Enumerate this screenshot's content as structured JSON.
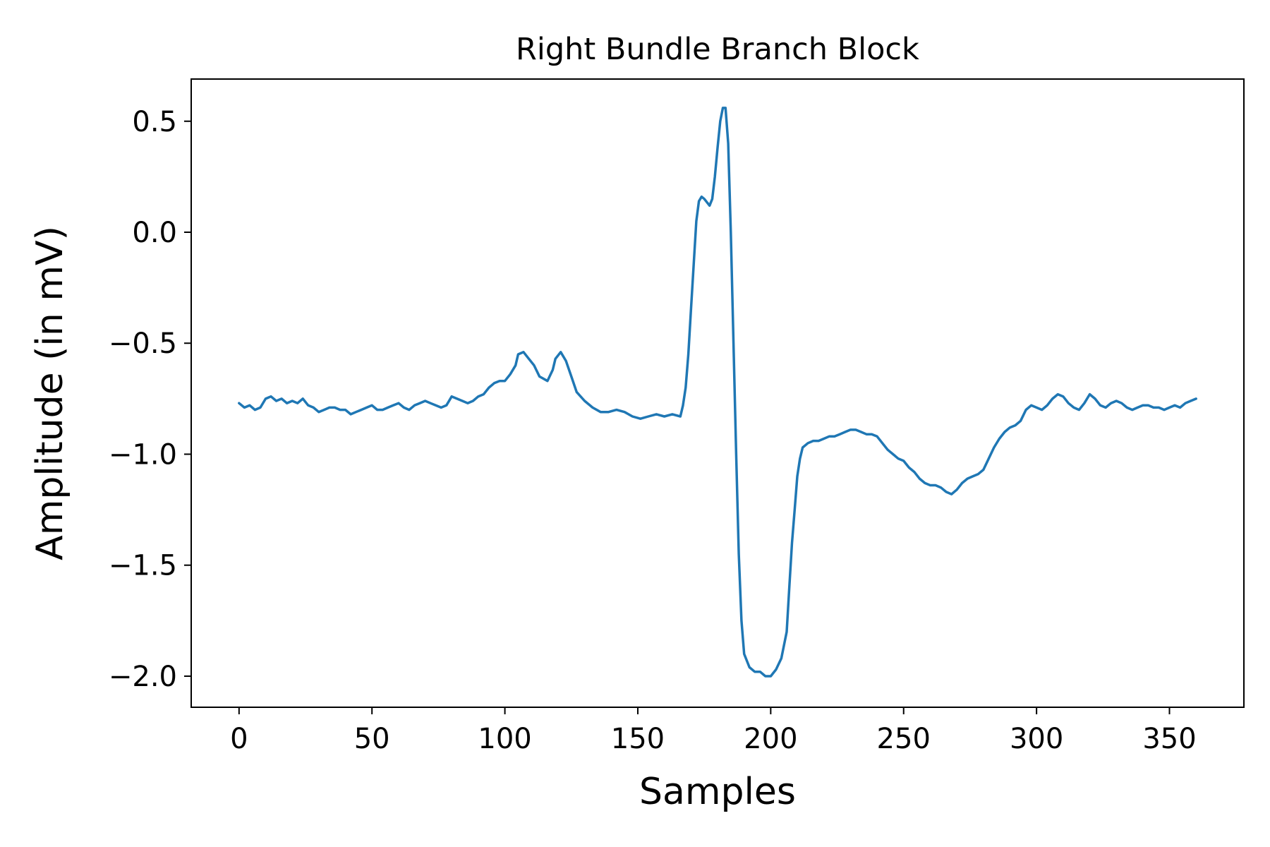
{
  "chart_data": {
    "type": "line",
    "title": "Right Bundle Branch Block",
    "xlabel": "Samples",
    "ylabel": "Amplitude (in mV)",
    "xlim": [
      -18,
      378
    ],
    "ylim": [
      -2.14,
      0.69
    ],
    "xticks": [
      0,
      50,
      100,
      150,
      200,
      250,
      300,
      350
    ],
    "xtick_labels": [
      "0",
      "50",
      "100",
      "150",
      "200",
      "250",
      "300",
      "350"
    ],
    "yticks": [
      0.5,
      0.0,
      -0.5,
      -1.0,
      -1.5,
      -2.0
    ],
    "ytick_labels": [
      "0.5",
      "0.0",
      "−0.5",
      "−1.0",
      "−1.5",
      "−2.0"
    ],
    "grid": false,
    "legend": "none",
    "series": [
      {
        "color": "#1f77b4",
        "points": [
          [
            0,
            -0.77
          ],
          [
            2,
            -0.79
          ],
          [
            4,
            -0.78
          ],
          [
            6,
            -0.8
          ],
          [
            8,
            -0.79
          ],
          [
            10,
            -0.75
          ],
          [
            12,
            -0.74
          ],
          [
            14,
            -0.76
          ],
          [
            16,
            -0.75
          ],
          [
            18,
            -0.77
          ],
          [
            20,
            -0.76
          ],
          [
            22,
            -0.77
          ],
          [
            24,
            -0.75
          ],
          [
            26,
            -0.78
          ],
          [
            28,
            -0.79
          ],
          [
            30,
            -0.81
          ],
          [
            32,
            -0.8
          ],
          [
            34,
            -0.79
          ],
          [
            36,
            -0.79
          ],
          [
            38,
            -0.8
          ],
          [
            40,
            -0.8
          ],
          [
            42,
            -0.82
          ],
          [
            44,
            -0.81
          ],
          [
            46,
            -0.8
          ],
          [
            48,
            -0.79
          ],
          [
            50,
            -0.78
          ],
          [
            52,
            -0.8
          ],
          [
            54,
            -0.8
          ],
          [
            56,
            -0.79
          ],
          [
            58,
            -0.78
          ],
          [
            60,
            -0.77
          ],
          [
            62,
            -0.79
          ],
          [
            64,
            -0.8
          ],
          [
            66,
            -0.78
          ],
          [
            68,
            -0.77
          ],
          [
            70,
            -0.76
          ],
          [
            72,
            -0.77
          ],
          [
            74,
            -0.78
          ],
          [
            76,
            -0.79
          ],
          [
            78,
            -0.78
          ],
          [
            80,
            -0.74
          ],
          [
            82,
            -0.75
          ],
          [
            84,
            -0.76
          ],
          [
            86,
            -0.77
          ],
          [
            88,
            -0.76
          ],
          [
            90,
            -0.74
          ],
          [
            92,
            -0.73
          ],
          [
            94,
            -0.7
          ],
          [
            96,
            -0.68
          ],
          [
            98,
            -0.67
          ],
          [
            100,
            -0.67
          ],
          [
            102,
            -0.64
          ],
          [
            104,
            -0.6
          ],
          [
            105,
            -0.55
          ],
          [
            107,
            -0.54
          ],
          [
            109,
            -0.57
          ],
          [
            111,
            -0.6
          ],
          [
            113,
            -0.65
          ],
          [
            116,
            -0.67
          ],
          [
            118,
            -0.62
          ],
          [
            119,
            -0.57
          ],
          [
            121,
            -0.54
          ],
          [
            123,
            -0.58
          ],
          [
            125,
            -0.65
          ],
          [
            127,
            -0.72
          ],
          [
            130,
            -0.76
          ],
          [
            133,
            -0.79
          ],
          [
            136,
            -0.81
          ],
          [
            139,
            -0.81
          ],
          [
            142,
            -0.8
          ],
          [
            145,
            -0.81
          ],
          [
            148,
            -0.83
          ],
          [
            151,
            -0.84
          ],
          [
            154,
            -0.83
          ],
          [
            157,
            -0.82
          ],
          [
            160,
            -0.83
          ],
          [
            163,
            -0.82
          ],
          [
            166,
            -0.83
          ],
          [
            167,
            -0.78
          ],
          [
            168,
            -0.7
          ],
          [
            169,
            -0.55
          ],
          [
            170,
            -0.35
          ],
          [
            171,
            -0.15
          ],
          [
            172,
            0.05
          ],
          [
            173,
            0.14
          ],
          [
            174,
            0.16
          ],
          [
            175,
            0.15
          ],
          [
            177,
            0.12
          ],
          [
            178,
            0.15
          ],
          [
            179,
            0.25
          ],
          [
            180,
            0.38
          ],
          [
            181,
            0.5
          ],
          [
            182,
            0.56
          ],
          [
            183,
            0.56
          ],
          [
            184,
            0.4
          ],
          [
            185,
            0.0
          ],
          [
            186,
            -0.5
          ],
          [
            187,
            -1.0
          ],
          [
            188,
            -1.45
          ],
          [
            189,
            -1.75
          ],
          [
            190,
            -1.9
          ],
          [
            192,
            -1.96
          ],
          [
            194,
            -1.98
          ],
          [
            196,
            -1.98
          ],
          [
            198,
            -2.0
          ],
          [
            200,
            -2.0
          ],
          [
            202,
            -1.97
          ],
          [
            204,
            -1.92
          ],
          [
            206,
            -1.8
          ],
          [
            207,
            -1.6
          ],
          [
            208,
            -1.4
          ],
          [
            209,
            -1.25
          ],
          [
            210,
            -1.1
          ],
          [
            211,
            -1.02
          ],
          [
            212,
            -0.97
          ],
          [
            214,
            -0.95
          ],
          [
            216,
            -0.94
          ],
          [
            218,
            -0.94
          ],
          [
            220,
            -0.93
          ],
          [
            222,
            -0.92
          ],
          [
            224,
            -0.92
          ],
          [
            226,
            -0.91
          ],
          [
            228,
            -0.9
          ],
          [
            230,
            -0.89
          ],
          [
            232,
            -0.89
          ],
          [
            234,
            -0.9
          ],
          [
            236,
            -0.91
          ],
          [
            238,
            -0.91
          ],
          [
            240,
            -0.92
          ],
          [
            242,
            -0.95
          ],
          [
            244,
            -0.98
          ],
          [
            246,
            -1.0
          ],
          [
            248,
            -1.02
          ],
          [
            250,
            -1.03
          ],
          [
            252,
            -1.06
          ],
          [
            254,
            -1.08
          ],
          [
            256,
            -1.11
          ],
          [
            258,
            -1.13
          ],
          [
            260,
            -1.14
          ],
          [
            262,
            -1.14
          ],
          [
            264,
            -1.15
          ],
          [
            266,
            -1.17
          ],
          [
            268,
            -1.18
          ],
          [
            270,
            -1.16
          ],
          [
            272,
            -1.13
          ],
          [
            274,
            -1.11
          ],
          [
            276,
            -1.1
          ],
          [
            278,
            -1.09
          ],
          [
            280,
            -1.07
          ],
          [
            282,
            -1.02
          ],
          [
            284,
            -0.97
          ],
          [
            286,
            -0.93
          ],
          [
            288,
            -0.9
          ],
          [
            290,
            -0.88
          ],
          [
            292,
            -0.87
          ],
          [
            294,
            -0.85
          ],
          [
            296,
            -0.8
          ],
          [
            298,
            -0.78
          ],
          [
            300,
            -0.79
          ],
          [
            302,
            -0.8
          ],
          [
            304,
            -0.78
          ],
          [
            306,
            -0.75
          ],
          [
            308,
            -0.73
          ],
          [
            310,
            -0.74
          ],
          [
            312,
            -0.77
          ],
          [
            314,
            -0.79
          ],
          [
            316,
            -0.8
          ],
          [
            318,
            -0.77
          ],
          [
            320,
            -0.73
          ],
          [
            322,
            -0.75
          ],
          [
            324,
            -0.78
          ],
          [
            326,
            -0.79
          ],
          [
            328,
            -0.77
          ],
          [
            330,
            -0.76
          ],
          [
            332,
            -0.77
          ],
          [
            334,
            -0.79
          ],
          [
            336,
            -0.8
          ],
          [
            338,
            -0.79
          ],
          [
            340,
            -0.78
          ],
          [
            342,
            -0.78
          ],
          [
            344,
            -0.79
          ],
          [
            346,
            -0.79
          ],
          [
            348,
            -0.8
          ],
          [
            350,
            -0.79
          ],
          [
            352,
            -0.78
          ],
          [
            354,
            -0.79
          ],
          [
            356,
            -0.77
          ],
          [
            358,
            -0.76
          ],
          [
            360,
            -0.75
          ]
        ]
      }
    ]
  }
}
